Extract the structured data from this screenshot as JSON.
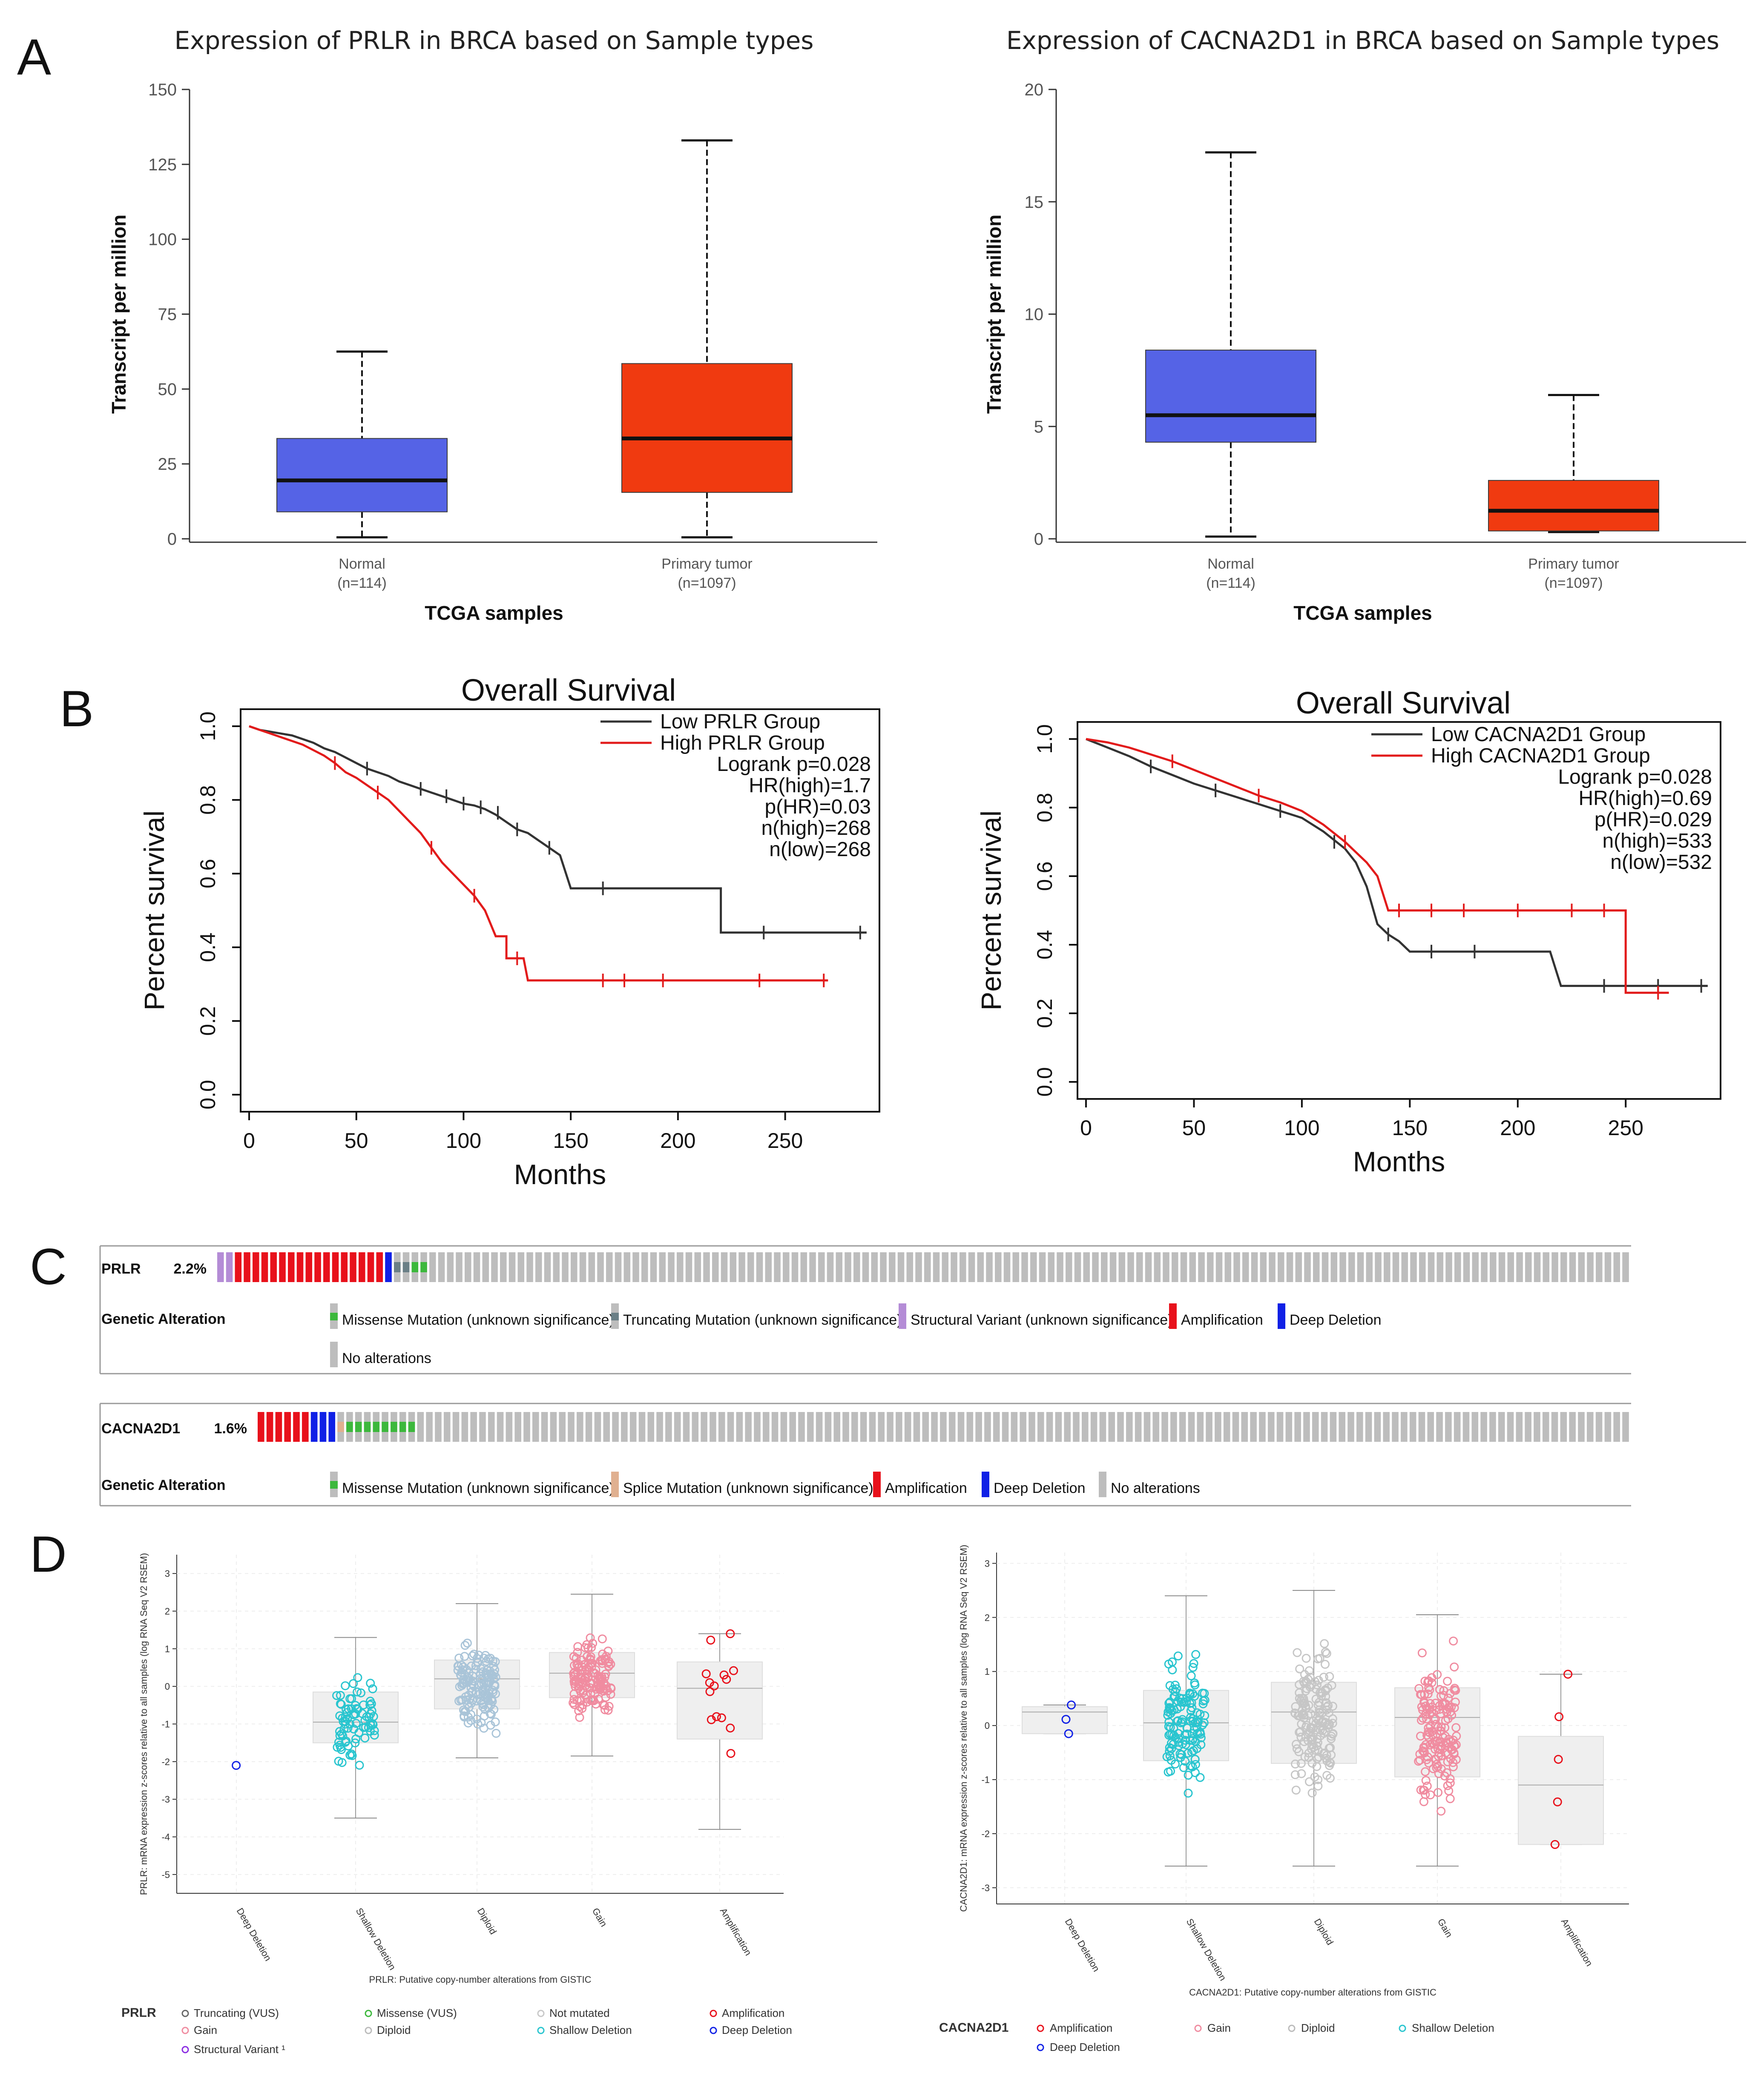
{
  "panels": {
    "a": "A",
    "b": "B",
    "c": "C",
    "d": "D"
  },
  "colors": {
    "normal": "#5563e6",
    "tumor": "#f03a10",
    "low": "#333333",
    "high": "#e21b1b",
    "amp": "#e8111b",
    "del": "#1020e6",
    "missense": "#3cb83c",
    "trunc": "#6a7f86",
    "sv": "#b48cd6",
    "splice": "#e0b090",
    "none": "#bdbdbd",
    "gain_pt": "#f08ca0",
    "diploid_pt": "#a9c4d8",
    "shallow_pt": "#29c5cf",
    "grey_pt": "#c6c6c6"
  },
  "chart_data": [
    {
      "id": "a1",
      "type": "box",
      "title": "Expression of PRLR in BRCA based on Sample types",
      "xlabel": "TCGA samples",
      "ylabel": "Transcript per million",
      "ylim": [
        0,
        150
      ],
      "yticks": [
        "0",
        "25",
        "50",
        "75",
        "100",
        "125",
        "150"
      ],
      "groups": [
        {
          "name": "Normal",
          "n": "(n=114)",
          "min": 0.5,
          "q1": 9,
          "median": 19.5,
          "q3": 33.5,
          "max": 62.5
        },
        {
          "name": "Primary tumor",
          "n": "(n=1097)",
          "min": 0.5,
          "q1": 15.5,
          "median": 33.5,
          "q3": 58.5,
          "max": 133
        }
      ]
    },
    {
      "id": "a2",
      "type": "box",
      "title": "Expression of CACNA2D1 in BRCA based on Sample types",
      "xlabel": "TCGA samples",
      "ylabel": "Transcript per million",
      "ylim": [
        0,
        20
      ],
      "yticks": [
        "0",
        "5",
        "10",
        "15",
        "20"
      ],
      "groups": [
        {
          "name": "Normal",
          "n": "(n=114)",
          "min": 0.1,
          "q1": 4.3,
          "median": 5.5,
          "q3": 8.4,
          "max": 17.2
        },
        {
          "name": "Primary tumor",
          "n": "(n=1097)",
          "min": 0.3,
          "q1": 0.35,
          "median": 1.25,
          "q3": 2.6,
          "max": 6.4
        }
      ]
    },
    {
      "id": "b1",
      "type": "line",
      "title": "Overall Survival",
      "xlabel": "Months",
      "ylabel": "Percent survival",
      "xlim": [
        0,
        290
      ],
      "ylim": [
        0,
        1
      ],
      "xticks": [
        "0",
        "50",
        "100",
        "150",
        "200",
        "250"
      ],
      "yticks": [
        "0.0",
        "0.2",
        "0.4",
        "0.6",
        "0.8",
        "1.0"
      ],
      "legend": [
        "Low PRLR Group",
        "High PRLR Group",
        "Logrank p=0.028",
        "HR(high)=1.7",
        "p(HR)=0.03",
        "n(high)=268",
        "n(low)=268"
      ],
      "series": [
        {
          "name": "Low PRLR Group",
          "points": [
            [
              0,
              1.0
            ],
            [
              5,
              0.99
            ],
            [
              10,
              0.985
            ],
            [
              15,
              0.98
            ],
            [
              20,
              0.975
            ],
            [
              25,
              0.965
            ],
            [
              30,
              0.955
            ],
            [
              35,
              0.94
            ],
            [
              40,
              0.93
            ],
            [
              45,
              0.915
            ],
            [
              50,
              0.9
            ],
            [
              55,
              0.885
            ],
            [
              60,
              0.875
            ],
            [
              65,
              0.865
            ],
            [
              70,
              0.85
            ],
            [
              75,
              0.84
            ],
            [
              80,
              0.83
            ],
            [
              85,
              0.82
            ],
            [
              90,
              0.81
            ],
            [
              95,
              0.8
            ],
            [
              100,
              0.79
            ],
            [
              105,
              0.785
            ],
            [
              110,
              0.775
            ],
            [
              115,
              0.76
            ],
            [
              120,
              0.74
            ],
            [
              125,
              0.72
            ],
            [
              130,
              0.71
            ],
            [
              135,
              0.69
            ],
            [
              140,
              0.67
            ],
            [
              145,
              0.65
            ],
            [
              150,
              0.56
            ],
            [
              220,
              0.56
            ],
            [
              220,
              0.44
            ],
            [
              288,
              0.44
            ]
          ],
          "censor": [
            [
              55,
              0.885
            ],
            [
              80,
              0.83
            ],
            [
              92,
              0.81
            ],
            [
              100,
              0.79
            ],
            [
              108,
              0.78
            ],
            [
              116,
              0.765
            ],
            [
              125,
              0.72
            ],
            [
              140,
              0.67
            ],
            [
              165,
              0.56
            ],
            [
              240,
              0.44
            ],
            [
              285,
              0.44
            ]
          ]
        },
        {
          "name": "High PRLR Group",
          "points": [
            [
              0,
              1.0
            ],
            [
              5,
              0.99
            ],
            [
              10,
              0.98
            ],
            [
              15,
              0.97
            ],
            [
              20,
              0.96
            ],
            [
              25,
              0.95
            ],
            [
              30,
              0.935
            ],
            [
              35,
              0.92
            ],
            [
              40,
              0.9
            ],
            [
              45,
              0.875
            ],
            [
              50,
              0.86
            ],
            [
              55,
              0.84
            ],
            [
              60,
              0.82
            ],
            [
              65,
              0.8
            ],
            [
              70,
              0.77
            ],
            [
              75,
              0.74
            ],
            [
              80,
              0.71
            ],
            [
              85,
              0.67
            ],
            [
              90,
              0.63
            ],
            [
              95,
              0.6
            ],
            [
              100,
              0.57
            ],
            [
              105,
              0.54
            ],
            [
              110,
              0.5
            ],
            [
              115,
              0.43
            ],
            [
              120,
              0.43
            ],
            [
              120,
              0.37
            ],
            [
              128,
              0.37
            ],
            [
              130,
              0.31
            ],
            [
              270,
              0.31
            ]
          ],
          "censor": [
            [
              40,
              0.9
            ],
            [
              60,
              0.82
            ],
            [
              85,
              0.67
            ],
            [
              105,
              0.54
            ],
            [
              125,
              0.37
            ],
            [
              165,
              0.31
            ],
            [
              175,
              0.31
            ],
            [
              193,
              0.31
            ],
            [
              238,
              0.31
            ],
            [
              268,
              0.31
            ]
          ]
        }
      ]
    },
    {
      "id": "b2",
      "type": "line",
      "title": "Overall Survival",
      "xlabel": "Months",
      "ylabel": "Percent survival",
      "xlim": [
        0,
        290
      ],
      "ylim": [
        0,
        1
      ],
      "xticks": [
        "0",
        "50",
        "100",
        "150",
        "200",
        "250"
      ],
      "yticks": [
        "0.0",
        "0.2",
        "0.4",
        "0.6",
        "0.8",
        "1.0"
      ],
      "legend": [
        "Low CACNA2D1 Group",
        "High CACNA2D1 Group",
        "Logrank p=0.028",
        "HR(high)=0.69",
        "p(HR)=0.029",
        "n(high)=533",
        "n(low)=532"
      ],
      "series": [
        {
          "name": "Low CACNA2D1 Group",
          "points": [
            [
              0,
              1.0
            ],
            [
              10,
              0.975
            ],
            [
              20,
              0.95
            ],
            [
              30,
              0.92
            ],
            [
              40,
              0.895
            ],
            [
              50,
              0.87
            ],
            [
              60,
              0.85
            ],
            [
              70,
              0.83
            ],
            [
              80,
              0.81
            ],
            [
              90,
              0.79
            ],
            [
              100,
              0.77
            ],
            [
              110,
              0.73
            ],
            [
              120,
              0.68
            ],
            [
              125,
              0.64
            ],
            [
              130,
              0.57
            ],
            [
              135,
              0.46
            ],
            [
              140,
              0.43
            ],
            [
              145,
              0.41
            ],
            [
              150,
              0.38
            ],
            [
              215,
              0.38
            ],
            [
              218,
              0.32
            ],
            [
              220,
              0.28
            ],
            [
              288,
              0.28
            ]
          ],
          "censor": [
            [
              30,
              0.92
            ],
            [
              60,
              0.85
            ],
            [
              90,
              0.79
            ],
            [
              115,
              0.7
            ],
            [
              140,
              0.43
            ],
            [
              160,
              0.38
            ],
            [
              180,
              0.38
            ],
            [
              240,
              0.28
            ],
            [
              265,
              0.28
            ],
            [
              285,
              0.28
            ]
          ]
        },
        {
          "name": "High CACNA2D1 Group",
          "points": [
            [
              0,
              1.0
            ],
            [
              10,
              0.99
            ],
            [
              20,
              0.975
            ],
            [
              30,
              0.955
            ],
            [
              40,
              0.935
            ],
            [
              50,
              0.91
            ],
            [
              60,
              0.885
            ],
            [
              70,
              0.86
            ],
            [
              80,
              0.835
            ],
            [
              90,
              0.815
            ],
            [
              100,
              0.79
            ],
            [
              110,
              0.75
            ],
            [
              120,
              0.7
            ],
            [
              130,
              0.64
            ],
            [
              135,
              0.6
            ],
            [
              140,
              0.5
            ],
            [
              250,
              0.5
            ],
            [
              250,
              0.26
            ],
            [
              270,
              0.26
            ]
          ],
          "censor": [
            [
              40,
              0.935
            ],
            [
              80,
              0.835
            ],
            [
              120,
              0.7
            ],
            [
              145,
              0.5
            ],
            [
              160,
              0.5
            ],
            [
              175,
              0.5
            ],
            [
              200,
              0.5
            ],
            [
              225,
              0.5
            ],
            [
              240,
              0.5
            ],
            [
              265,
              0.26
            ]
          ]
        }
      ]
    },
    {
      "id": "d1",
      "type": "scatter",
      "ylabel": "PRLR: mRNA expression z-scores relative to all samples (log RNA Seq V2 RSEM)",
      "xlabel": "PRLR: Putative copy-number alterations from GISTIC",
      "ylim": [
        -5.5,
        3.5
      ],
      "yticks": [
        "-5",
        "-4",
        "-3",
        "-2",
        "-1",
        "0",
        "1",
        "2",
        "3"
      ],
      "categories": [
        "Deep Deletion",
        "Shallow Deletion",
        "Diploid",
        "Gain",
        "Amplification"
      ],
      "boxes": [
        {
          "category": "Deep Deletion",
          "min": -2.1,
          "q1": -2.1,
          "median": -2.1,
          "q3": -2.1,
          "max": -2.1,
          "n": 1
        },
        {
          "category": "Shallow Deletion",
          "min": -3.5,
          "q1": -1.5,
          "median": -0.95,
          "q3": -0.15,
          "max": 1.3,
          "n": 80
        },
        {
          "category": "Diploid",
          "min": -1.9,
          "q1": -0.6,
          "median": 0.2,
          "q3": 0.7,
          "max": 2.2,
          "n": 400
        },
        {
          "category": "Gain",
          "min": -1.85,
          "q1": -0.3,
          "median": 0.35,
          "q3": 0.9,
          "max": 2.45,
          "n": 220
        },
        {
          "category": "Amplification",
          "min": -3.8,
          "q1": -1.4,
          "median": -0.05,
          "q3": 0.65,
          "max": 1.4,
          "n": 14
        }
      ],
      "legend": {
        "gene": "PRLR",
        "items": [
          "Truncating (VUS)",
          "Missense (VUS)",
          "Not mutated",
          "Amplification",
          "Gain",
          "Diploid",
          "Shallow Deletion",
          "Deep Deletion",
          "Structural Variant ¹"
        ]
      }
    },
    {
      "id": "d2",
      "type": "scatter",
      "ylabel": "CACNA2D1: mRNA expression z-scores relative to all samples (log RNA Seq V2 RSEM)",
      "xlabel": "CACNA2D1: Putative copy-number alterations from GISTIC",
      "ylim": [
        -3.3,
        3.2
      ],
      "yticks": [
        "-3",
        "-2",
        "-1",
        "0",
        "1",
        "2",
        "3"
      ],
      "categories": [
        "Deep Deletion",
        "Shallow Deletion",
        "Diploid",
        "Gain",
        "Amplification"
      ],
      "boxes": [
        {
          "category": "Deep Deletion",
          "min": -0.15,
          "q1": -0.15,
          "median": 0.25,
          "q3": 0.35,
          "max": 0.38,
          "n": 3
        },
        {
          "category": "Shallow Deletion",
          "min": -2.6,
          "q1": -0.65,
          "median": 0.05,
          "q3": 0.65,
          "max": 2.4,
          "n": 130
        },
        {
          "category": "Diploid",
          "min": -2.6,
          "q1": -0.7,
          "median": 0.25,
          "q3": 0.8,
          "max": 2.5,
          "n": 700
        },
        {
          "category": "Gain",
          "min": -2.6,
          "q1": -0.95,
          "median": 0.15,
          "q3": 0.7,
          "max": 2.05,
          "n": 300
        },
        {
          "category": "Amplification",
          "min": -2.2,
          "q1": -2.2,
          "median": -1.1,
          "q3": -0.2,
          "max": 0.95,
          "n": 5
        }
      ],
      "legend": {
        "gene": "CACNA2D1",
        "items": [
          "Amplification",
          "Gain",
          "Diploid",
          "Shallow Deletion",
          "Deep Deletion"
        ]
      }
    }
  ],
  "oncoprint": [
    {
      "gene": "PRLR",
      "pct": "2.2%",
      "label": "Genetic Alteration",
      "bars": [
        "sv",
        "sv",
        "amp",
        "amp",
        "amp",
        "amp",
        "amp",
        "amp",
        "amp",
        "amp",
        "amp",
        "amp",
        "amp",
        "amp",
        "amp",
        "amp",
        "amp",
        "amp",
        "amp",
        "del",
        "trunc",
        "trunc",
        "missense",
        "missense"
      ],
      "total": 160,
      "legend": [
        "Missense Mutation (unknown significance)",
        "Truncating Mutation (unknown significance)",
        "Structural Variant (unknown significance)",
        "Amplification",
        "Deep Deletion",
        "No alterations"
      ]
    },
    {
      "gene": "CACNA2D1",
      "pct": "1.6%",
      "label": "Genetic Alteration",
      "bars": [
        "amp",
        "amp",
        "amp",
        "amp",
        "amp",
        "amp",
        "del",
        "del",
        "del",
        "splice",
        "missense",
        "missense",
        "missense",
        "missense",
        "missense",
        "missense",
        "missense",
        "missense"
      ],
      "total": 155,
      "legend": [
        "Missense Mutation (unknown significance)",
        "Splice Mutation (unknown significance)",
        "Amplification",
        "Deep Deletion",
        "No alterations"
      ]
    }
  ]
}
